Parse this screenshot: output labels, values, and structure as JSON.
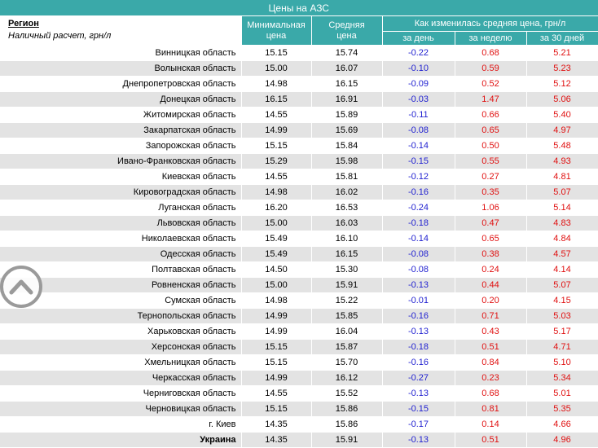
{
  "table": {
    "title": "Цены на АЗС",
    "region_header": "Регион",
    "region_subheader": "Наличный расчет, грн/л",
    "col_min": [
      "Минимальная",
      "цена"
    ],
    "col_avg": [
      "Средняя",
      "цена"
    ],
    "col_change": "Как изменилась средняя цена, грн/л",
    "col_day": "за день",
    "col_week": "за неделю",
    "col_30": "за 30 дней",
    "rows": [
      {
        "region": "Винницкая область",
        "min": "15.15",
        "avg": "15.74",
        "day": "-0.22",
        "week": "0.68",
        "month": "5.21"
      },
      {
        "region": "Волынская область",
        "min": "15.00",
        "avg": "16.07",
        "day": "-0.10",
        "week": "0.59",
        "month": "5.23"
      },
      {
        "region": "Днепропетровская область",
        "min": "14.98",
        "avg": "16.15",
        "day": "-0.09",
        "week": "0.52",
        "month": "5.12"
      },
      {
        "region": "Донецкая область",
        "min": "16.15",
        "avg": "16.91",
        "day": "-0.03",
        "week": "1.47",
        "month": "5.06"
      },
      {
        "region": "Житомирская область",
        "min": "14.55",
        "avg": "15.89",
        "day": "-0.11",
        "week": "0.66",
        "month": "5.40"
      },
      {
        "region": "Закарпатская область",
        "min": "14.99",
        "avg": "15.69",
        "day": "-0.08",
        "week": "0.65",
        "month": "4.97"
      },
      {
        "region": "Запорожская область",
        "min": "15.15",
        "avg": "15.84",
        "day": "-0.14",
        "week": "0.50",
        "month": "5.48"
      },
      {
        "region": "Ивано-Франковская область",
        "min": "15.29",
        "avg": "15.98",
        "day": "-0.15",
        "week": "0.55",
        "month": "4.93"
      },
      {
        "region": "Киевская область",
        "min": "14.55",
        "avg": "15.81",
        "day": "-0.12",
        "week": "0.27",
        "month": "4.81"
      },
      {
        "region": "Кировоградская область",
        "min": "14.98",
        "avg": "16.02",
        "day": "-0.16",
        "week": "0.35",
        "month": "5.07"
      },
      {
        "region": "Луганская область",
        "min": "16.20",
        "avg": "16.53",
        "day": "-0.24",
        "week": "1.06",
        "month": "5.14"
      },
      {
        "region": "Львовская область",
        "min": "15.00",
        "avg": "16.03",
        "day": "-0.18",
        "week": "0.47",
        "month": "4.83"
      },
      {
        "region": "Николаевская область",
        "min": "15.49",
        "avg": "16.10",
        "day": "-0.14",
        "week": "0.65",
        "month": "4.84"
      },
      {
        "region": "Одесская область",
        "min": "15.49",
        "avg": "16.15",
        "day": "-0.08",
        "week": "0.38",
        "month": "4.57"
      },
      {
        "region": "Полтавская область",
        "min": "14.50",
        "avg": "15.30",
        "day": "-0.08",
        "week": "0.24",
        "month": "4.14"
      },
      {
        "region": "Ровненская область",
        "min": "15.00",
        "avg": "15.91",
        "day": "-0.13",
        "week": "0.44",
        "month": "5.07"
      },
      {
        "region": "Сумская область",
        "min": "14.98",
        "avg": "15.22",
        "day": "-0.01",
        "week": "0.20",
        "month": "4.15"
      },
      {
        "region": "Тернопольская область",
        "min": "14.99",
        "avg": "15.85",
        "day": "-0.16",
        "week": "0.71",
        "month": "5.03"
      },
      {
        "region": "Харьковская область",
        "min": "14.99",
        "avg": "16.04",
        "day": "-0.13",
        "week": "0.43",
        "month": "5.17"
      },
      {
        "region": "Херсонская область",
        "min": "15.15",
        "avg": "15.87",
        "day": "-0.18",
        "week": "0.51",
        "month": "4.71"
      },
      {
        "region": "Хмельницкая область",
        "min": "15.15",
        "avg": "15.70",
        "day": "-0.16",
        "week": "0.84",
        "month": "5.10"
      },
      {
        "region": "Черкасская область",
        "min": "14.99",
        "avg": "16.12",
        "day": "-0.27",
        "week": "0.23",
        "month": "5.34"
      },
      {
        "region": "Черниговская область",
        "min": "14.55",
        "avg": "15.52",
        "day": "-0.13",
        "week": "0.68",
        "month": "5.01"
      },
      {
        "region": "Черновицкая область",
        "min": "15.15",
        "avg": "15.86",
        "day": "-0.15",
        "week": "0.81",
        "month": "5.35"
      },
      {
        "region": "г. Киев",
        "min": "14.35",
        "avg": "15.86",
        "day": "-0.17",
        "week": "0.14",
        "month": "4.66"
      },
      {
        "region": "Украина",
        "min": "14.35",
        "avg": "15.91",
        "day": "-0.13",
        "week": "0.51",
        "month": "4.96",
        "total": true
      }
    ]
  },
  "colors": {
    "header": "#3aa9a9",
    "negative": "#1f1fd0",
    "positive": "#e01010",
    "stripe": "#e3e3e3"
  },
  "scroll_button": {
    "icon": "chevron-up-icon"
  }
}
